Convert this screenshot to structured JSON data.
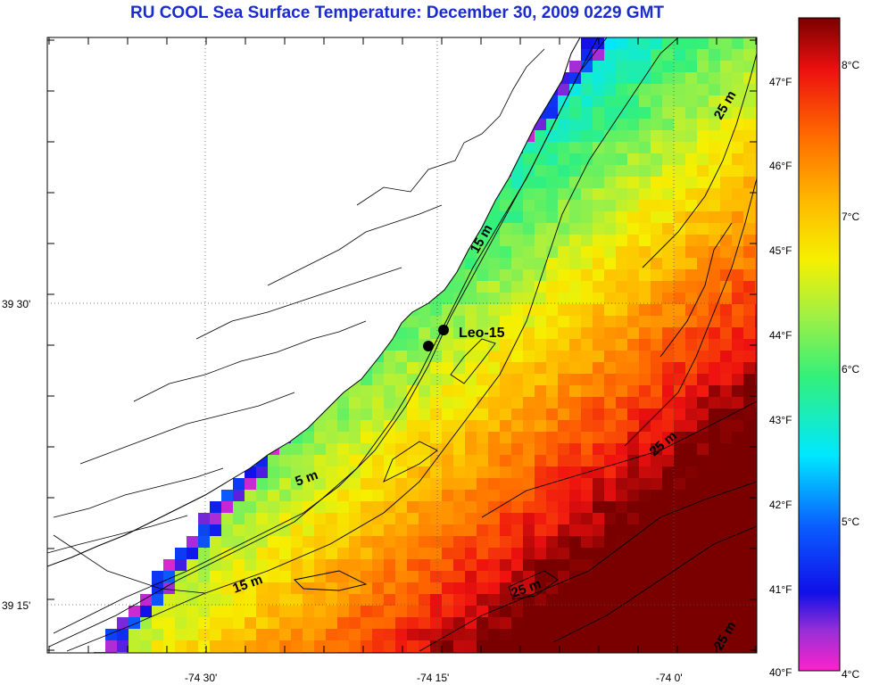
{
  "title": "RU COOL  Sea Surface Temperature:  December 30, 2009 0229 GMT",
  "axes": {
    "lat_labels": [
      "39 30'",
      "39 15'"
    ],
    "lon_labels": [
      "-74 30'",
      "-74 15'",
      "-74 0'"
    ]
  },
  "station": {
    "label": "Leo-15"
  },
  "contour_labels": [
    "15 m",
    "5 m",
    "15 m",
    "25 m",
    "25 m",
    "25 m",
    "25 m"
  ],
  "colorbar": {
    "fahrenheit_labels": [
      "47°F",
      "46°F",
      "45°F",
      "44°F",
      "43°F",
      "42°F",
      "41°F",
      "40°F"
    ],
    "celsius_labels": [
      "8°C",
      "7°C",
      "6°C",
      "5°C",
      "4°C"
    ]
  },
  "colors": {
    "title": "#1a2bd0",
    "land": "#ffffff",
    "coast": "#000000"
  }
}
